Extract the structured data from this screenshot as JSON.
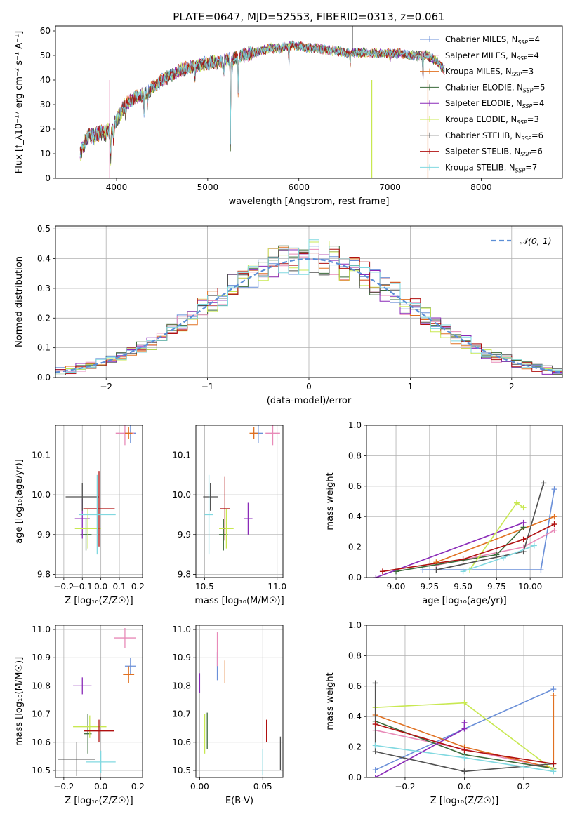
{
  "figure_title": "PLATE=0647, MJD=52553, FIBERID=0313, z=0.061",
  "colors": {
    "Chabrier MILES": "#6a8fd8",
    "Salpeter MILES": "#e88ab8",
    "Kroupa MILES": "#e07020",
    "Chabrier ELODIE": "#3a6a3a",
    "Salpeter ELODIE": "#8a2ab8",
    "Kroupa ELODIE": "#c8e850",
    "Chabrier STELIB": "#505050",
    "Salpeter STELIB": "#b01010",
    "Kroupa STELIB": "#80d8e0",
    "gauss": "#5b8ed6",
    "grid": "#b0b0b0"
  },
  "chart_data": [
    {
      "id": "spectrum",
      "type": "line",
      "xlabel": "wavelength [Angstrom, rest frame]",
      "ylabel": "Flux [f_λ10⁻¹⁷ erg cm⁻² s⁻¹ A⁻¹]",
      "xlim": [
        3330,
        8890
      ],
      "ylim": [
        0,
        62
      ],
      "xticks": [
        4000,
        5000,
        6000,
        7000,
        8000
      ],
      "yticks": [
        0,
        10,
        20,
        30,
        40,
        50,
        60
      ],
      "grid": false,
      "legend_position": "top-right",
      "legend": [
        {
          "name": "Chabrier MILES",
          "n": "4"
        },
        {
          "name": "Salpeter MILES",
          "n": "4"
        },
        {
          "name": "Kroupa MILES",
          "n": "3"
        },
        {
          "name": "Chabrier ELODIE",
          "n": "5"
        },
        {
          "name": "Salpeter ELODIE",
          "n": "4"
        },
        {
          "name": "Kroupa ELODIE",
          "n": "3"
        },
        {
          "name": "Chabrier STELIB",
          "n": "6"
        },
        {
          "name": "Salpeter STELIB",
          "n": "6"
        },
        {
          "name": "Kroupa STELIB",
          "n": "7"
        }
      ],
      "continuum": [
        [
          3600,
          10
        ],
        [
          3650,
          14
        ],
        [
          3700,
          18
        ],
        [
          3760,
          17
        ],
        [
          3820,
          19
        ],
        [
          3880,
          18
        ],
        [
          3950,
          20
        ],
        [
          4000,
          24
        ],
        [
          4100,
          30
        ],
        [
          4200,
          33
        ],
        [
          4300,
          34
        ],
        [
          4400,
          37
        ],
        [
          4500,
          40
        ],
        [
          4600,
          42
        ],
        [
          4700,
          44
        ],
        [
          4800,
          45
        ],
        [
          4900,
          46
        ],
        [
          5000,
          47
        ],
        [
          5100,
          47
        ],
        [
          5200,
          48
        ],
        [
          5300,
          49
        ],
        [
          5400,
          50
        ],
        [
          5500,
          51
        ],
        [
          5600,
          52
        ],
        [
          5700,
          53
        ],
        [
          5800,
          53
        ],
        [
          5900,
          54
        ],
        [
          6000,
          54
        ],
        [
          6100,
          53
        ],
        [
          6200,
          53
        ],
        [
          6300,
          52
        ],
        [
          6400,
          52
        ],
        [
          6500,
          51
        ],
        [
          6600,
          51
        ],
        [
          6700,
          51
        ],
        [
          6800,
          51
        ],
        [
          6900,
          51
        ],
        [
          7000,
          51
        ],
        [
          7100,
          51
        ],
        [
          7200,
          50
        ],
        [
          7300,
          50
        ],
        [
          7400,
          50
        ],
        [
          7500,
          48
        ],
        [
          7600,
          44
        ]
      ],
      "features": [
        [
          3934,
          -14
        ],
        [
          3969,
          -10
        ],
        [
          4101,
          -6
        ],
        [
          4300,
          -9
        ],
        [
          4340,
          -6
        ],
        [
          4861,
          -5
        ],
        [
          5175,
          -6
        ],
        [
          5250,
          -35
        ],
        [
          5270,
          -5
        ],
        [
          5335,
          -14
        ],
        [
          5890,
          -8
        ],
        [
          6563,
          -5
        ],
        [
          7000,
          -3
        ],
        [
          7360,
          -12
        ]
      ],
      "spikes": [
        {
          "series": "Salpeter MILES",
          "x": 3925
        },
        {
          "series": "Kroupa ELODIE",
          "x": 6800
        },
        {
          "series": "Kroupa MILES",
          "x": 7415
        }
      ],
      "top_spike_x": 6590
    },
    {
      "id": "residual-histogram",
      "type": "bar",
      "xlabel": "(data-model)/error",
      "ylabel": "Normed distribution",
      "xlim": [
        -2.5,
        2.5
      ],
      "ylim": [
        0,
        0.51
      ],
      "xticks": [
        -2,
        -1,
        0,
        1,
        2
      ],
      "yticks": [
        0.0,
        0.1,
        0.2,
        0.3,
        0.4,
        0.5
      ],
      "grid": true,
      "legend_position": "top-right",
      "legend": [
        {
          "name": "𝒩(0, 1)",
          "style": "dashed"
        }
      ],
      "bin_width": 0.1
    },
    {
      "id": "age-vs-z",
      "type": "scatter",
      "xlabel": "Z [log₁₀(Z/Z☉)]",
      "ylabel": "age  [log₁₀(age/yr)]",
      "xlim": [
        -0.245,
        0.225
      ],
      "ylim": [
        9.792,
        10.175
      ],
      "xticks": [
        -0.2,
        -0.1,
        0.0,
        0.1,
        0.2
      ],
      "yticks": [
        9.8,
        9.9,
        10.0,
        10.1
      ],
      "grid": true,
      "points": [
        {
          "series": "Chabrier MILES",
          "x": 0.16,
          "y": 10.155,
          "xerr": 0.03,
          "yerr": 0.025
        },
        {
          "series": "Salpeter MILES",
          "x": 0.13,
          "y": 10.155,
          "xerr": 0.05,
          "yerr": 0.03
        },
        {
          "series": "Kroupa MILES",
          "x": 0.15,
          "y": 10.155,
          "xerr": 0.02,
          "yerr": 0.015
        },
        {
          "series": "Chabrier ELODIE",
          "x": -0.08,
          "y": 9.9,
          "xerr": 0.03,
          "yerr": 0.04
        },
        {
          "series": "Salpeter ELODIE",
          "x": -0.1,
          "y": 9.94,
          "xerr": 0.04,
          "yerr": 0.05
        },
        {
          "series": "Kroupa ELODIE",
          "x": -0.07,
          "y": 9.915,
          "xerr": 0.07,
          "yerr": 0.05
        },
        {
          "series": "Chabrier STELIB",
          "x": -0.1,
          "y": 9.995,
          "xerr": 0.09,
          "yerr": 0.035
        },
        {
          "series": "Salpeter STELIB",
          "x": -0.01,
          "y": 9.965,
          "xerr": 0.085,
          "yerr": 0.095
        },
        {
          "series": "Kroupa STELIB",
          "x": -0.02,
          "y": 9.95,
          "xerr": 0.1,
          "yerr": 0.1
        }
      ]
    },
    {
      "id": "age-vs-mass",
      "type": "scatter",
      "xlabel": "mass [log₁₀(M/M☉)]",
      "ylabel": "",
      "xlim": [
        10.44,
        11.04
      ],
      "ylim": [
        9.792,
        10.175
      ],
      "xticks": [
        10.5,
        11.0
      ],
      "yticks": [
        9.8,
        9.9,
        10.0,
        10.1
      ],
      "grid": true,
      "points": [
        {
          "series": "Chabrier MILES",
          "x": 10.87,
          "y": 10.155,
          "xerr": 0.03,
          "yerr": 0.025
        },
        {
          "series": "Salpeter MILES",
          "x": 10.97,
          "y": 10.155,
          "xerr": 0.05,
          "yerr": 0.03
        },
        {
          "series": "Kroupa MILES",
          "x": 10.84,
          "y": 10.155,
          "xerr": 0.03,
          "yerr": 0.015
        },
        {
          "series": "Chabrier ELODIE",
          "x": 10.63,
          "y": 9.9,
          "xerr": 0.03,
          "yerr": 0.04
        },
        {
          "series": "Salpeter ELODIE",
          "x": 10.8,
          "y": 9.94,
          "xerr": 0.03,
          "yerr": 0.04
        },
        {
          "series": "Kroupa ELODIE",
          "x": 10.65,
          "y": 9.915,
          "xerr": 0.05,
          "yerr": 0.05
        },
        {
          "series": "Chabrier STELIB",
          "x": 10.54,
          "y": 9.995,
          "xerr": 0.05,
          "yerr": 0.035
        },
        {
          "series": "Salpeter STELIB",
          "x": 10.64,
          "y": 9.965,
          "xerr": 0.035,
          "yerr": 0.08
        },
        {
          "series": "Kroupa STELIB",
          "x": 10.53,
          "y": 9.95,
          "xerr": 0.03,
          "yerr": 0.1
        }
      ]
    },
    {
      "id": "weight-vs-age",
      "type": "line",
      "xlabel": "age  [log₁₀(age/yr)]",
      "ylabel": "mass weight",
      "xlim": [
        8.78,
        10.24
      ],
      "ylim": [
        0,
        1.0
      ],
      "xticks": [
        9.0,
        9.25,
        9.5,
        9.75,
        10.0
      ],
      "yticks": [
        0.0,
        0.2,
        0.4,
        0.6,
        0.8,
        1.0
      ],
      "grid": true,
      "series": [
        {
          "name": "Chabrier MILES",
          "x": [
            9.2,
            10.08,
            10.18
          ],
          "y": [
            0.05,
            0.05,
            0.58
          ]
        },
        {
          "name": "Salpeter MILES",
          "x": [
            9.3,
            9.95,
            10.18
          ],
          "y": [
            0.08,
            0.2,
            0.31
          ]
        },
        {
          "name": "Kroupa MILES",
          "x": [
            9.3,
            10.18
          ],
          "y": [
            0.1,
            0.4
          ]
        },
        {
          "name": "Chabrier ELODIE",
          "x": [
            9.0,
            9.75,
            9.95
          ],
          "y": [
            0.04,
            0.15,
            0.33
          ]
        },
        {
          "name": "Salpeter ELODIE",
          "x": [
            8.85,
            9.95
          ],
          "y": [
            0.0,
            0.36
          ]
        },
        {
          "name": "Kroupa ELODIE",
          "x": [
            9.55,
            9.9,
            9.95
          ],
          "y": [
            0.05,
            0.49,
            0.46
          ]
        },
        {
          "name": "Chabrier STELIB",
          "x": [
            9.3,
            9.95,
            10.1
          ],
          "y": [
            0.05,
            0.17,
            0.62
          ]
        },
        {
          "name": "Salpeter STELIB",
          "x": [
            8.9,
            9.5,
            9.95,
            10.18
          ],
          "y": [
            0.04,
            0.12,
            0.25,
            0.35
          ]
        },
        {
          "name": "Kroupa STELIB",
          "x": [
            9.5,
            9.8,
            10.03
          ],
          "y": [
            0.04,
            0.13,
            0.21
          ]
        }
      ]
    },
    {
      "id": "mass-vs-z",
      "type": "scatter",
      "xlabel": "Z [log₁₀(Z/Z☉)]",
      "ylabel": "mass [log₁₀(M/M☉)]",
      "xlim": [
        -0.245,
        0.225
      ],
      "ylim": [
        10.475,
        11.015
      ],
      "xticks": [
        -0.2,
        0.0,
        0.2
      ],
      "yticks": [
        10.5,
        10.6,
        10.7,
        10.8,
        10.9,
        11.0
      ],
      "grid": true,
      "points": [
        {
          "series": "Chabrier MILES",
          "x": 0.16,
          "y": 10.87,
          "xerr": 0.03,
          "yerr": 0.03
        },
        {
          "series": "Salpeter MILES",
          "x": 0.13,
          "y": 10.97,
          "xerr": 0.06,
          "yerr": 0.035
        },
        {
          "series": "Kroupa MILES",
          "x": 0.15,
          "y": 10.84,
          "xerr": 0.03,
          "yerr": 0.03
        },
        {
          "series": "Chabrier ELODIE",
          "x": -0.07,
          "y": 10.63,
          "xerr": 0.02,
          "yerr": 0.07
        },
        {
          "series": "Salpeter ELODIE",
          "x": -0.1,
          "y": 10.8,
          "xerr": 0.05,
          "yerr": 0.03
        },
        {
          "series": "Kroupa ELODIE",
          "x": -0.06,
          "y": 10.655,
          "xerr": 0.09,
          "yerr": 0.04
        },
        {
          "series": "Chabrier STELIB",
          "x": -0.13,
          "y": 10.54,
          "xerr": 0.1,
          "yerr": 0.06
        },
        {
          "series": "Salpeter STELIB",
          "x": -0.01,
          "y": 10.64,
          "xerr": 0.08,
          "yerr": 0.04
        },
        {
          "series": "Kroupa STELIB",
          "x": 0.0,
          "y": 10.53,
          "xerr": 0.08,
          "yerr": 0.04
        }
      ]
    },
    {
      "id": "mass-vs-ebv",
      "type": "scatter",
      "xlabel": "E(B-V)",
      "ylabel": "",
      "xlim": [
        -0.003,
        0.066
      ],
      "ylim": [
        10.475,
        11.015
      ],
      "xticks": [
        0.0,
        0.05
      ],
      "yticks": [
        10.5,
        10.6,
        10.7,
        10.8,
        10.9,
        11.0
      ],
      "grid": true,
      "points": [
        {
          "series": "Chabrier MILES",
          "x": 0.014,
          "y": 10.87,
          "xerr": 0,
          "yerr": 0.05
        },
        {
          "series": "Salpeter MILES",
          "x": 0.014,
          "y": 10.93,
          "xerr": 0,
          "yerr": 0.06
        },
        {
          "series": "Kroupa MILES",
          "x": 0.02,
          "y": 10.85,
          "xerr": 0,
          "yerr": 0.04
        },
        {
          "series": "Chabrier ELODIE",
          "x": 0.006,
          "y": 10.64,
          "xerr": 0,
          "yerr": 0.065
        },
        {
          "series": "Salpeter ELODIE",
          "x": 0.0,
          "y": 10.81,
          "xerr": 0,
          "yerr": 0.035
        },
        {
          "series": "Kroupa ELODIE",
          "x": 0.004,
          "y": 10.63,
          "xerr": 0,
          "yerr": 0.07
        },
        {
          "series": "Chabrier STELIB",
          "x": 0.064,
          "y": 10.56,
          "xerr": 0,
          "yerr": 0.06
        },
        {
          "series": "Salpeter STELIB",
          "x": 0.053,
          "y": 10.64,
          "xerr": 0,
          "yerr": 0.04
        },
        {
          "series": "Kroupa STELIB",
          "x": 0.05,
          "y": 10.53,
          "xerr": 0,
          "yerr": 0.045
        }
      ]
    },
    {
      "id": "weight-vs-z",
      "type": "line",
      "xlabel": "Z [log₁₀(Z/Z☉)]",
      "ylabel": "mass weight",
      "xlim": [
        -0.33,
        0.33
      ],
      "ylim": [
        0,
        1.0
      ],
      "xticks": [
        -0.2,
        0.0,
        0.2
      ],
      "yticks": [
        0.0,
        0.2,
        0.4,
        0.6,
        0.8,
        1.0
      ],
      "grid": true,
      "series": [
        {
          "name": "Chabrier MILES",
          "x": [
            -0.3,
            0.0,
            0.3
          ],
          "y": [
            0.05,
            0.32,
            0.58
          ]
        },
        {
          "name": "Salpeter MILES",
          "x": [
            -0.3,
            0.3
          ],
          "y": [
            0.31,
            0.06
          ]
        },
        {
          "name": "Kroupa MILES",
          "x": [
            -0.3,
            0.0,
            0.3,
            0.3
          ],
          "y": [
            0.41,
            0.2,
            0.06,
            0.54
          ]
        },
        {
          "name": "Chabrier ELODIE",
          "x": [
            -0.3,
            0.0,
            0.3
          ],
          "y": [
            0.37,
            0.15,
            0.06
          ]
        },
        {
          "name": "Salpeter ELODIE",
          "x": [
            -0.3,
            0.0,
            0.0
          ],
          "y": [
            0.0,
            0.32,
            0.36
          ]
        },
        {
          "name": "Kroupa ELODIE",
          "x": [
            -0.3,
            0.0,
            0.3
          ],
          "y": [
            0.46,
            0.49,
            0.05
          ]
        },
        {
          "name": "Chabrier STELIB",
          "x": [
            -0.3,
            -0.3,
            0.0,
            0.3
          ],
          "y": [
            0.62,
            0.17,
            0.04,
            0.09
          ]
        },
        {
          "name": "Salpeter STELIB",
          "x": [
            -0.3,
            0.0,
            0.3
          ],
          "y": [
            0.35,
            0.18,
            0.09
          ]
        },
        {
          "name": "Kroupa STELIB",
          "x": [
            -0.3,
            0.0,
            0.3
          ],
          "y": [
            0.21,
            0.13,
            0.04
          ]
        }
      ]
    }
  ]
}
